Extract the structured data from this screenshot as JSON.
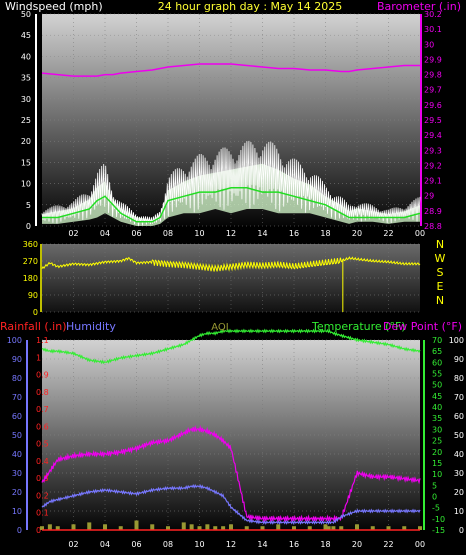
{
  "header": {
    "left_label": "Windspeed (mph)",
    "center_label": "24 hour graph day : May 14 2025",
    "right_label": "Barometer (.in)"
  },
  "labels": {
    "rainfall": "Rainfall (.in)",
    "humidity": "Humidity",
    "aqi": "AQI",
    "temperature": "Temperature (°F)",
    "dewpoint": "Dew Point (°F)"
  },
  "colors": {
    "windspeed": "#ffffff",
    "wind_avg": "#22dd22",
    "gust_fill": "#d9ffd0",
    "barometer": "#ee00ee",
    "direction": "#ffff00",
    "rainfall": "#ff2222",
    "humidity": "#7777ff",
    "aqi": "#999933",
    "temperature": "#33ee33",
    "dewpoint": "#ee00ee"
  },
  "x_ticks": [
    "02",
    "04",
    "06",
    "08",
    "10",
    "12",
    "14",
    "16",
    "18",
    "20",
    "22",
    "00"
  ],
  "chart_data": [
    {
      "type": "line",
      "name": "wind_barometer",
      "x_hours": [
        0,
        1,
        2,
        3,
        3.5,
        4,
        4.5,
        5,
        6,
        7,
        7.5,
        8,
        9,
        10,
        11,
        12,
        13,
        14,
        15,
        16,
        17,
        18,
        19,
        19.5,
        20,
        21,
        22,
        23,
        24
      ],
      "windspeed_high": [
        4,
        5,
        6,
        9,
        13,
        15,
        9,
        6,
        3,
        2,
        4,
        12,
        15,
        17,
        18,
        19,
        20,
        21,
        19,
        16,
        14,
        10,
        7,
        5,
        6,
        5,
        4,
        5,
        7
      ],
      "windspeed_avg": [
        2,
        2,
        3,
        4,
        6,
        7,
        5,
        3,
        1,
        1,
        2,
        6,
        7,
        8,
        8,
        9,
        9,
        8,
        8,
        7,
        6,
        5,
        3,
        2,
        2,
        2,
        2,
        2,
        3
      ],
      "gust_low": [
        0.5,
        0.5,
        1,
        1.5,
        2,
        3,
        2,
        1,
        0,
        0,
        0.5,
        2,
        3,
        3,
        4,
        3,
        4,
        4,
        3,
        3,
        3,
        2,
        1,
        0.5,
        1,
        1,
        0.5,
        1,
        1
      ],
      "barometer": [
        29.81,
        29.8,
        29.79,
        29.79,
        29.79,
        29.8,
        29.8,
        29.81,
        29.82,
        29.83,
        29.84,
        29.85,
        29.86,
        29.87,
        29.87,
        29.87,
        29.86,
        29.85,
        29.84,
        29.84,
        29.83,
        29.83,
        29.82,
        29.82,
        29.83,
        29.84,
        29.85,
        29.86,
        29.86
      ],
      "y_left": [
        0,
        50
      ],
      "y_left_ticks": [
        "0",
        "5",
        "10",
        "15",
        "20",
        "25",
        "30",
        "35",
        "40",
        "45",
        "50"
      ],
      "y_right": [
        28.8,
        30.2
      ],
      "y_right_ticks": [
        "28.8",
        "28.9",
        "29",
        "29.1",
        "29.2",
        "29.3",
        "29.4",
        "29.5",
        "29.6",
        "29.7",
        "29.8",
        "29.9",
        "30",
        "30.1",
        "30.2"
      ]
    },
    {
      "type": "line",
      "name": "wind_direction",
      "x_hours": [
        0,
        0.5,
        1,
        2,
        3,
        4,
        5,
        5.5,
        6,
        7,
        8,
        9,
        10,
        11,
        12,
        13,
        14,
        15,
        16,
        17,
        18,
        19,
        19.5,
        20,
        21,
        22,
        23,
        24
      ],
      "direction": [
        230,
        260,
        240,
        255,
        250,
        265,
        270,
        285,
        260,
        265,
        255,
        250,
        240,
        230,
        240,
        250,
        245,
        250,
        240,
        250,
        260,
        270,
        285,
        280,
        270,
        265,
        255,
        255
      ],
      "y_range": [
        0,
        360
      ],
      "y_ticks": [
        "0",
        "90",
        "180",
        "270",
        "360"
      ],
      "compass": [
        "N",
        "W",
        "S",
        "E",
        "N"
      ]
    },
    {
      "type": "line",
      "name": "humidity_temperature",
      "x_hours": [
        0,
        0.5,
        1,
        2,
        3,
        4,
        5,
        6,
        7,
        8,
        9,
        9.5,
        10,
        10.5,
        11,
        11.5,
        12,
        13,
        14,
        15,
        16,
        17,
        18,
        18.2,
        18.5,
        19,
        20,
        21,
        22,
        23,
        24
      ],
      "dewpoint_pct": [
        25,
        31,
        37,
        39,
        40,
        40,
        41,
        43,
        46,
        47,
        51,
        53,
        53,
        52,
        50,
        47,
        43,
        7,
        6,
        6,
        6,
        6,
        6,
        6,
        6,
        6,
        30,
        28,
        28,
        27,
        26
      ],
      "humidity_pct": [
        12,
        15,
        16,
        18,
        20,
        21,
        20,
        19,
        21,
        22,
        22,
        23,
        23,
        22,
        20,
        18,
        12,
        5,
        4,
        4,
        4,
        4,
        4,
        4,
        4,
        7,
        10,
        10,
        10,
        10,
        10
      ],
      "temperature_f": [
        66,
        65,
        65,
        64,
        61,
        60,
        62,
        63,
        64,
        66,
        68,
        70,
        72,
        73,
        73,
        74,
        74,
        74,
        74,
        74,
        74,
        74,
        74,
        74,
        73,
        72,
        70,
        69,
        68,
        66,
        65
      ],
      "rainfall_in": [
        0,
        0,
        0,
        0,
        0,
        0,
        0,
        0,
        0,
        0,
        0,
        0,
        0,
        0,
        0,
        0,
        0,
        0,
        0,
        0,
        0,
        0,
        0,
        0,
        0,
        0,
        0,
        0,
        0,
        0,
        0
      ],
      "aqi_level": [
        2,
        3,
        2,
        3,
        4,
        3,
        2,
        5,
        3,
        2,
        4,
        3,
        2,
        3,
        2,
        2,
        3,
        2,
        2,
        3,
        2,
        2,
        3,
        2,
        2,
        2,
        3,
        2,
        2,
        2,
        2
      ],
      "y_left_humidity": [
        0,
        100
      ],
      "y_left_humidity_ticks": [
        "0",
        "10",
        "20",
        "30",
        "40",
        "50",
        "60",
        "70",
        "80",
        "90",
        "100"
      ],
      "y_left_rain": [
        0,
        1.1
      ],
      "y_left_rain_ticks": [
        "0",
        "0.1",
        "0.2",
        "0.3",
        "0.4",
        "0.5",
        "0.6",
        "0.7",
        "0.8",
        "0.9",
        "1",
        "1.1"
      ],
      "y_right_temp": [
        -15,
        70
      ],
      "y_right_temp_ticks": [
        "-15",
        "-10",
        "-5",
        "0",
        "5",
        "10",
        "15",
        "20",
        "25",
        "30",
        "35",
        "40",
        "45",
        "50",
        "55",
        "60",
        "65",
        "70"
      ],
      "y_right_pct_ticks": [
        "0",
        "10",
        "20",
        "30",
        "40",
        "50",
        "60",
        "70",
        "80",
        "90",
        "100"
      ]
    }
  ]
}
